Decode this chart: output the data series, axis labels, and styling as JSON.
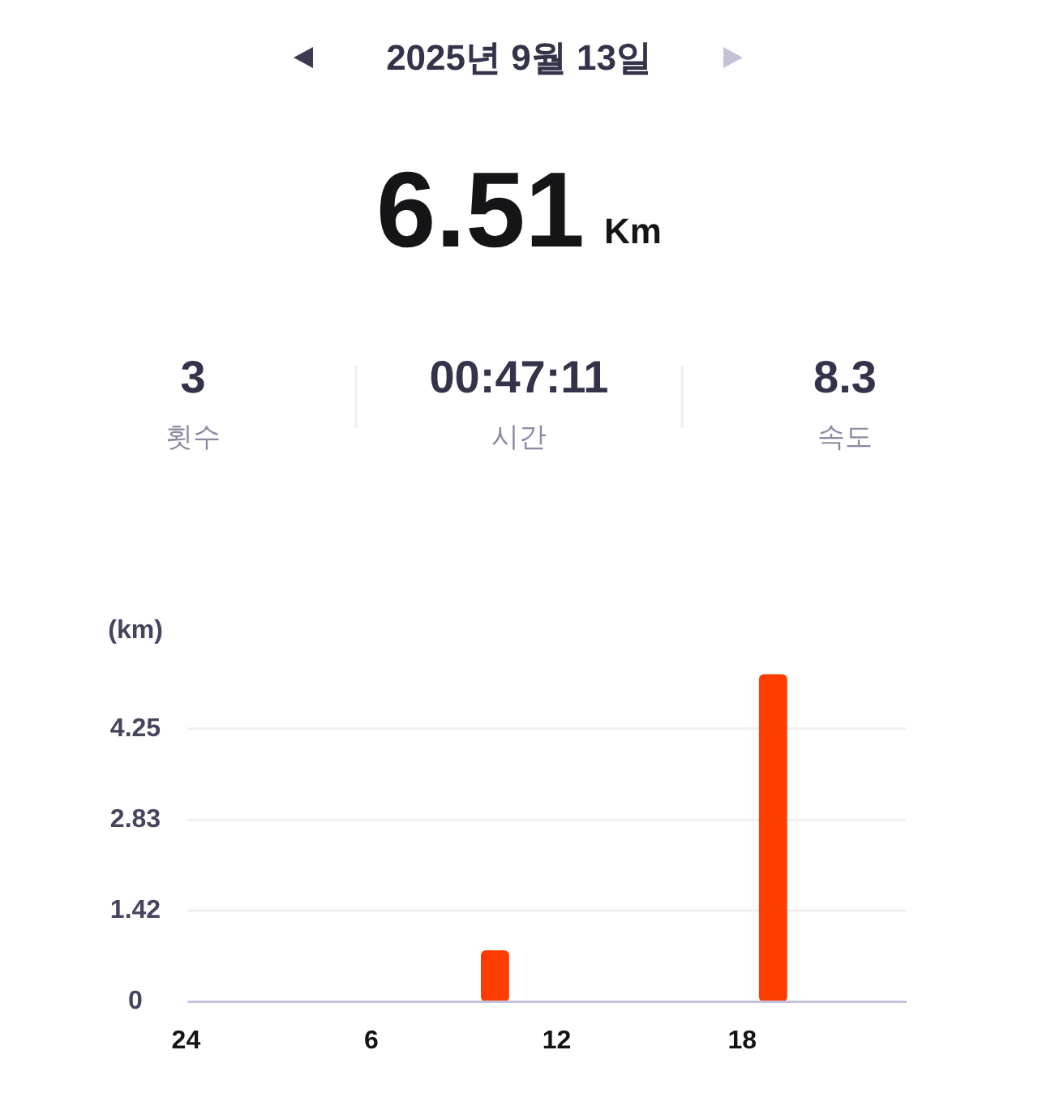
{
  "chart_data": [
    {
      "type": "other",
      "title": "2025년 9월 13일",
      "annotations": [
        "6.51",
        "Km",
        "3",
        "횟수",
        "00:47:11",
        "시간",
        "8.3",
        "속도"
      ]
    },
    {
      "type": "bar",
      "categories": [
        "24",
        null,
        null,
        null,
        null,
        null,
        "6",
        null,
        null,
        null,
        null,
        null,
        "12",
        null,
        null,
        null,
        null,
        null,
        "18",
        null,
        null,
        null,
        null,
        null
      ],
      "values": [
        null,
        null,
        null,
        null,
        null,
        null,
        null,
        null,
        null,
        null,
        0.8,
        null,
        null,
        null,
        null,
        null,
        null,
        null,
        null,
        5.1,
        null,
        null,
        null,
        null
      ],
      "color": "#ff3d00",
      "ylim": [
        0,
        5.1
      ],
      "yticks": [
        0,
        1.42,
        2.83,
        4.25
      ],
      "ylabel": "(km)",
      "grid": "y"
    }
  ]
}
